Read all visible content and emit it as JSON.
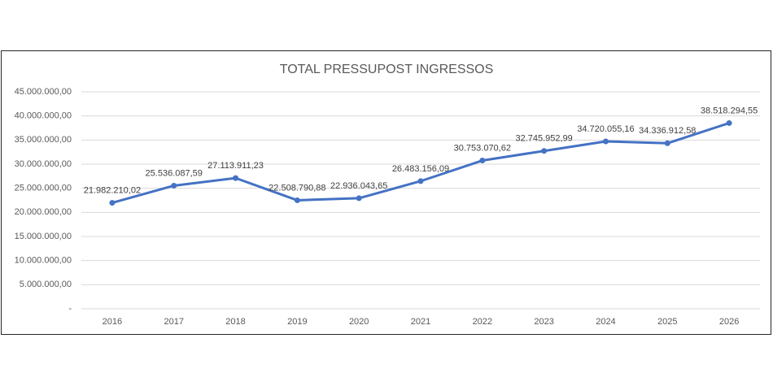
{
  "chart_data": {
    "type": "line",
    "title": "TOTAL PRESSUPOST INGRESSOS",
    "categories": [
      "2016",
      "2017",
      "2018",
      "2019",
      "2020",
      "2021",
      "2022",
      "2023",
      "2024",
      "2025",
      "2026"
    ],
    "values": [
      21982210.02,
      25536087.59,
      27113911.23,
      22508790.88,
      22936043.65,
      26483156.09,
      30753070.62,
      32745952.99,
      34720055.16,
      34336912.58,
      38518294.55
    ],
    "value_labels": [
      "21.982.210,02",
      "25.536.087,59",
      "27.113.911,23",
      "22.508.790,88",
      "22.936.043,65",
      "26.483.156,09",
      "30.753.070,62",
      "32.745.952,99",
      "34.720.055,16",
      "34.336.912,58",
      "38.518.294,55"
    ],
    "color": "#4472c4",
    "ylim": [
      0,
      45000000
    ],
    "yticks": [
      {
        "value": 0,
        "label": "-"
      },
      {
        "value": 5000000,
        "label": "5.000.000,00"
      },
      {
        "value": 10000000,
        "label": "10.000.000,00"
      },
      {
        "value": 15000000,
        "label": "15.000.000,00"
      },
      {
        "value": 20000000,
        "label": "20.000.000,00"
      },
      {
        "value": 25000000,
        "label": "25.000.000,00"
      },
      {
        "value": 30000000,
        "label": "30.000.000,00"
      },
      {
        "value": 35000000,
        "label": "35.000.000,00"
      },
      {
        "value": 40000000,
        "label": "40.000.000,00"
      },
      {
        "value": 45000000,
        "label": "45.000.000,00"
      }
    ],
    "grid": true
  }
}
